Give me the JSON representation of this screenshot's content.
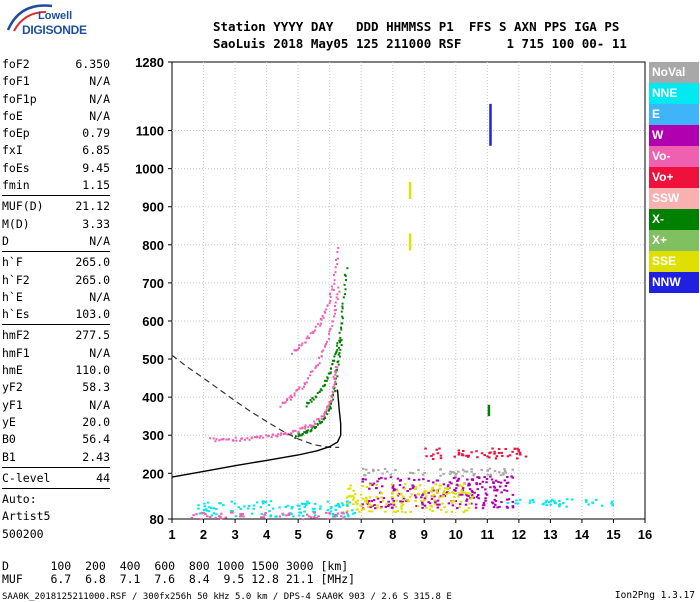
{
  "logo": {
    "line1": "Lowell",
    "line2": "DIGISONDE"
  },
  "header": {
    "line1": "Station YYYY DAY   DDD HHMMSS P1  FFS S AXN PPS IGA PS",
    "line2": "SaoLuis 2018 May05 125 211000 RSF      1 715 100 00- 11"
  },
  "params": [
    {
      "k": "foF2",
      "v": "6.350"
    },
    {
      "k": "foF1",
      "v": "N/A"
    },
    {
      "k": "foF1p",
      "v": "N/A"
    },
    {
      "k": "foE",
      "v": "N/A"
    },
    {
      "k": "foEp",
      "v": "0.79"
    },
    {
      "k": "fxI",
      "v": "6.85"
    },
    {
      "k": "foEs",
      "v": "9.45"
    },
    {
      "k": "fmin",
      "v": "1.15"
    },
    {
      "sep": true
    },
    {
      "k": "MUF(D)",
      "v": "21.12"
    },
    {
      "k": "M(D)",
      "v": "3.33"
    },
    {
      "k": "D",
      "v": "N/A"
    },
    {
      "sep": true
    },
    {
      "k": "h`F",
      "v": "265.0"
    },
    {
      "k": "h`F2",
      "v": "265.0"
    },
    {
      "k": "h`E",
      "v": "N/A"
    },
    {
      "k": "h`Es",
      "v": "103.0"
    },
    {
      "sep": true
    },
    {
      "k": "hmF2",
      "v": "277.5"
    },
    {
      "k": "hmF1",
      "v": "N/A"
    },
    {
      "k": "hmE",
      "v": "110.0"
    },
    {
      "k": "yF2",
      "v": "58.3"
    },
    {
      "k": "yF1",
      "v": "N/A"
    },
    {
      "k": "yE",
      "v": "20.0"
    },
    {
      "k": "B0",
      "v": "56.4"
    },
    {
      "k": "B1",
      "v": "2.43"
    },
    {
      "sep": true
    },
    {
      "k": "C-level",
      "v": "44"
    },
    {
      "sep": true
    },
    {
      "k": "Auto:",
      "v": ""
    },
    {
      "k": "Artist5",
      "v": ""
    },
    {
      "k": "500200",
      "v": ""
    }
  ],
  "footer": {
    "line1": "D      100  200  400  600  800 1000 1500 3000 [km]",
    "line2": "MUF    6.7  6.8  7.1  7.6  8.4  9.5 12.8 21.1 [MHz]",
    "ctrl": "SAA0K_2018125211000.RSF / 300fx256h 50 kHz 5.0 km / DPS-4 SAA0K 903 / 2.6 S 315.8 E",
    "version": "Ion2Png 1.3.17"
  },
  "legend": [
    {
      "label": "NoVal",
      "color": "#a8a8a8"
    },
    {
      "label": "NNE",
      "color": "#00e8f0"
    },
    {
      "label": "E",
      "color": "#40b4f8"
    },
    {
      "label": "W",
      "color": "#b000b0"
    },
    {
      "label": "Vo-",
      "color": "#f060b0"
    },
    {
      "label": "Vo+",
      "color": "#f0103c"
    },
    {
      "label": "SSW",
      "color": "#f8b0b0"
    },
    {
      "label": "X-",
      "color": "#008000"
    },
    {
      "label": "X+",
      "color": "#80c060"
    },
    {
      "label": "SSE",
      "color": "#e0e000"
    },
    {
      "label": "NNW",
      "color": "#2020e0"
    }
  ],
  "chart_data": {
    "type": "scatter",
    "title": "",
    "xlabel": "",
    "ylabel": "",
    "xlim": [
      1,
      16
    ],
    "ylim": [
      80,
      1280
    ],
    "x_ticks": [
      1,
      2,
      3,
      4,
      5,
      6,
      7,
      8,
      9,
      10,
      11,
      12,
      13,
      14,
      15,
      16
    ],
    "y_ticks": [
      80,
      200,
      300,
      400,
      500,
      600,
      700,
      800,
      900,
      1000,
      1100,
      1280
    ],
    "grid": true,
    "legend_position": "right",
    "profile_curve": {
      "name": "",
      "points": [
        [
          1,
          190
        ],
        [
          2,
          205
        ],
        [
          3,
          220
        ],
        [
          4,
          234
        ],
        [
          5,
          248
        ],
        [
          5.6,
          259
        ],
        [
          6.0,
          270
        ],
        [
          6.25,
          282
        ],
        [
          6.35,
          300
        ],
        [
          6.35,
          330
        ],
        [
          6.3,
          370
        ],
        [
          6.25,
          420
        ]
      ]
    },
    "dashed_curve": {
      "name": "",
      "points": [
        [
          1,
          510
        ],
        [
          1.5,
          478
        ],
        [
          2,
          450
        ],
        [
          2.5,
          420
        ],
        [
          3,
          390
        ],
        [
          3.5,
          362
        ],
        [
          4,
          336
        ],
        [
          4.5,
          311
        ],
        [
          5,
          290
        ],
        [
          5.5,
          275
        ],
        [
          6,
          268
        ],
        [
          6.3,
          268
        ]
      ]
    },
    "traces": [
      {
        "series": "X-",
        "x": [
          4.9,
          5.2,
          5.5,
          5.8,
          6.0,
          6.15,
          6.25,
          6.35
        ],
        "y": [
          300,
          310,
          322,
          345,
          380,
          430,
          500,
          560
        ]
      },
      {
        "series": "X-",
        "x": [
          5.2,
          5.6,
          5.9,
          6.1,
          6.3,
          6.4,
          6.5
        ],
        "y": [
          380,
          410,
          450,
          500,
          560,
          640,
          750
        ]
      },
      {
        "series": "Vo-",
        "x": [
          2.2,
          2.8,
          3.4,
          4.0,
          4.5,
          5.0,
          5.4,
          5.8,
          6.0,
          6.1,
          6.2
        ],
        "y": [
          290,
          292,
          294,
          298,
          305,
          315,
          330,
          355,
          390,
          440,
          490
        ]
      },
      {
        "series": "Vo-",
        "x": [
          4.4,
          4.8,
          5.2,
          5.6,
          5.9,
          6.1,
          6.3
        ],
        "y": [
          380,
          405,
          440,
          490,
          550,
          620,
          700
        ]
      },
      {
        "series": "Vo-",
        "x": [
          4.8,
          5.2,
          5.6,
          5.9,
          6.1,
          6.25
        ],
        "y": [
          520,
          550,
          590,
          640,
          700,
          800
        ]
      }
    ],
    "bands": [
      {
        "series": "Vo+",
        "xmin": 9.0,
        "xmax": 12.2,
        "ymin": 240,
        "ymax": 270
      },
      {
        "series": "W",
        "xmin": 7.0,
        "xmax": 11.8,
        "ymin": 110,
        "ymax": 195
      },
      {
        "series": "SSE",
        "xmin": 6.5,
        "xmax": 10.5,
        "ymin": 100,
        "ymax": 175
      },
      {
        "series": "NNE",
        "xmin": 1.8,
        "xmax": 6.8,
        "ymin": 88,
        "ymax": 130
      },
      {
        "series": "NNE",
        "xmin": 11.5,
        "xmax": 15.0,
        "ymin": 115,
        "ymax": 135
      },
      {
        "series": "NoVal",
        "xmin": 7.0,
        "xmax": 12.0,
        "ymin": 195,
        "ymax": 215
      },
      {
        "series": "Vo-",
        "xmin": 1.5,
        "xmax": 6.5,
        "ymin": 82,
        "ymax": 100
      }
    ],
    "verticals": [
      {
        "series": "SSE",
        "x": 8.55,
        "ymin": 920,
        "ymax": 965
      },
      {
        "series": "SSE",
        "x": 8.55,
        "ymin": 785,
        "ymax": 830
      },
      {
        "series": "NNW",
        "x": 11.1,
        "ymin": 1060,
        "ymax": 1170
      },
      {
        "series": "X-",
        "x": 11.05,
        "ymin": 350,
        "ymax": 380
      }
    ]
  }
}
